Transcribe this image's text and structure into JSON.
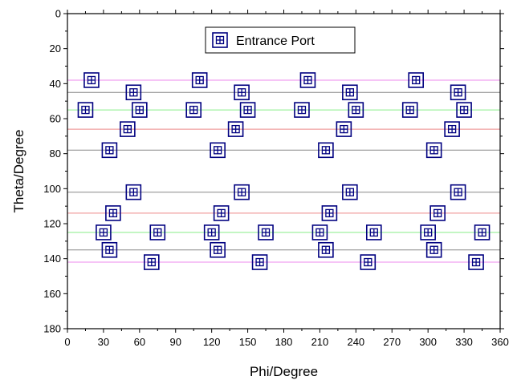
{
  "chart_data": {
    "type": "scatter",
    "xlabel": "Phi/Degree",
    "ylabel": "Theta/Degree",
    "xlim": [
      0,
      360
    ],
    "ylim": [
      0,
      180
    ],
    "y_inverted": true,
    "x_ticks": [
      0,
      30,
      60,
      90,
      120,
      150,
      180,
      210,
      240,
      270,
      300,
      330,
      360
    ],
    "y_ticks": [
      0,
      20,
      40,
      60,
      80,
      100,
      120,
      140,
      160,
      180
    ],
    "grid": false,
    "legend": {
      "position": "top-center",
      "entries": [
        "Entrance Port"
      ]
    },
    "marker": {
      "shape": "square-with-cross",
      "color": "#000080"
    },
    "series": [
      {
        "name": "Entrance Port",
        "points": [
          [
            20,
            38
          ],
          [
            110,
            38
          ],
          [
            200,
            38
          ],
          [
            290,
            38
          ],
          [
            55,
            45
          ],
          [
            145,
            45
          ],
          [
            235,
            45
          ],
          [
            325,
            45
          ],
          [
            15,
            55
          ],
          [
            60,
            55
          ],
          [
            105,
            55
          ],
          [
            150,
            55
          ],
          [
            195,
            55
          ],
          [
            240,
            55
          ],
          [
            285,
            55
          ],
          [
            330,
            55
          ],
          [
            50,
            66
          ],
          [
            140,
            66
          ],
          [
            230,
            66
          ],
          [
            320,
            66
          ],
          [
            35,
            78
          ],
          [
            125,
            78
          ],
          [
            215,
            78
          ],
          [
            305,
            78
          ],
          [
            55,
            102
          ],
          [
            145,
            102
          ],
          [
            235,
            102
          ],
          [
            325,
            102
          ],
          [
            38,
            114
          ],
          [
            128,
            114
          ],
          [
            218,
            114
          ],
          [
            308,
            114
          ],
          [
            30,
            125
          ],
          [
            75,
            125
          ],
          [
            120,
            125
          ],
          [
            165,
            125
          ],
          [
            210,
            125
          ],
          [
            255,
            125
          ],
          [
            300,
            125
          ],
          [
            345,
            125
          ],
          [
            35,
            135
          ],
          [
            125,
            135
          ],
          [
            215,
            135
          ],
          [
            305,
            135
          ],
          [
            70,
            142
          ],
          [
            160,
            142
          ],
          [
            250,
            142
          ],
          [
            340,
            142
          ]
        ]
      }
    ],
    "reference_lines": [
      {
        "y": 38,
        "color": "#ee88ee"
      },
      {
        "y": 45,
        "color": "#888888"
      },
      {
        "y": 55,
        "color": "#88ee88"
      },
      {
        "y": 66,
        "color": "#ee8888"
      },
      {
        "y": 78,
        "color": "#888888"
      },
      {
        "y": 102,
        "color": "#888888"
      },
      {
        "y": 114,
        "color": "#ee8888"
      },
      {
        "y": 125,
        "color": "#88ee88"
      },
      {
        "y": 135,
        "color": "#888888"
      },
      {
        "y": 142,
        "color": "#ee88ee"
      }
    ]
  }
}
